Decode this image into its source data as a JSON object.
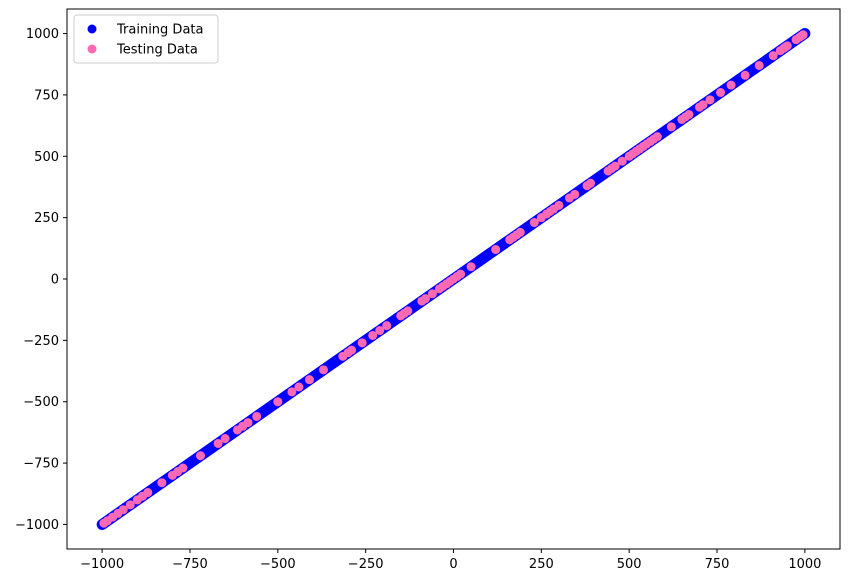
{
  "chart_data": {
    "type": "scatter",
    "title": "",
    "xlabel": "",
    "ylabel": "",
    "xlim": [
      -1100,
      1100
    ],
    "ylim": [
      -1100,
      1100
    ],
    "x_ticks": [
      -1000,
      -750,
      -500,
      -250,
      0,
      250,
      500,
      750,
      1000
    ],
    "y_ticks": [
      -1000,
      -750,
      -500,
      -250,
      0,
      250,
      500,
      750,
      1000
    ],
    "x_tick_labels": [
      "−1000",
      "−750",
      "−500",
      "−250",
      "0",
      "250",
      "500",
      "750",
      "1000"
    ],
    "y_tick_labels": [
      "−1000",
      "−750",
      "−500",
      "−250",
      "0",
      "250",
      "500",
      "750",
      "1000"
    ],
    "grid": false,
    "legend_position": "top-left",
    "series": [
      {
        "name": "Training Data",
        "color": "#0000ff",
        "marker": "circle",
        "note_range": [
          -1000,
          1000
        ],
        "x": [
          -1000,
          -980,
          -960,
          -940,
          -920,
          -900,
          -880,
          -860,
          -840,
          -820,
          -800,
          -780,
          -760,
          -740,
          -720,
          -700,
          -680,
          -660,
          -640,
          -620,
          -600,
          -580,
          -560,
          -540,
          -520,
          -500,
          -480,
          -460,
          -440,
          -420,
          -400,
          -380,
          -360,
          -340,
          -320,
          -300,
          -280,
          -260,
          -240,
          -220,
          -200,
          -180,
          -160,
          -140,
          -120,
          -100,
          -80,
          -60,
          -40,
          -20,
          0,
          20,
          40,
          60,
          80,
          100,
          120,
          140,
          160,
          180,
          200,
          220,
          240,
          260,
          280,
          300,
          320,
          340,
          360,
          380,
          400,
          420,
          440,
          460,
          480,
          500,
          520,
          540,
          560,
          580,
          600,
          620,
          640,
          660,
          680,
          700,
          720,
          740,
          760,
          780,
          800,
          820,
          840,
          860,
          880,
          900,
          920,
          940,
          960,
          980,
          1000
        ],
        "y": [
          -1000,
          -980,
          -960,
          -940,
          -920,
          -900,
          -880,
          -860,
          -840,
          -820,
          -800,
          -780,
          -760,
          -740,
          -720,
          -700,
          -680,
          -660,
          -640,
          -620,
          -600,
          -580,
          -560,
          -540,
          -520,
          -500,
          -480,
          -460,
          -440,
          -420,
          -400,
          -380,
          -360,
          -340,
          -320,
          -300,
          -280,
          -260,
          -240,
          -220,
          -200,
          -180,
          -160,
          -140,
          -120,
          -100,
          -80,
          -60,
          -40,
          -20,
          0,
          20,
          40,
          60,
          80,
          100,
          120,
          140,
          160,
          180,
          200,
          220,
          240,
          260,
          280,
          300,
          320,
          340,
          360,
          380,
          400,
          420,
          440,
          460,
          480,
          500,
          520,
          540,
          560,
          580,
          600,
          620,
          640,
          660,
          680,
          700,
          720,
          740,
          760,
          780,
          800,
          820,
          840,
          860,
          880,
          900,
          920,
          940,
          960,
          980,
          1000
        ]
      },
      {
        "name": "Testing Data",
        "color": "#ff69b4",
        "marker": "circle",
        "x": [
          -995,
          -985,
          -970,
          -955,
          -940,
          -920,
          -900,
          -885,
          -870,
          -830,
          -800,
          -785,
          -770,
          -720,
          -670,
          -650,
          -615,
          -600,
          -585,
          -560,
          -500,
          -460,
          -440,
          -410,
          -370,
          -315,
          -300,
          -290,
          -260,
          -230,
          -210,
          -190,
          -150,
          -140,
          -130,
          -90,
          -80,
          -60,
          -40,
          -30,
          -20,
          -10,
          0,
          10,
          20,
          50,
          120,
          160,
          170,
          180,
          190,
          230,
          250,
          265,
          275,
          285,
          300,
          330,
          345,
          380,
          390,
          440,
          450,
          460,
          480,
          500,
          510,
          520,
          530,
          540,
          550,
          560,
          570,
          580,
          620,
          650,
          660,
          670,
          700,
          710,
          730,
          760,
          790,
          830,
          870,
          910,
          930,
          940,
          945,
          950,
          975,
          985,
          990,
          995
        ],
        "y": [
          -995,
          -985,
          -970,
          -955,
          -940,
          -920,
          -900,
          -885,
          -870,
          -830,
          -800,
          -785,
          -770,
          -720,
          -670,
          -650,
          -615,
          -600,
          -585,
          -560,
          -500,
          -460,
          -440,
          -410,
          -370,
          -315,
          -300,
          -290,
          -260,
          -230,
          -210,
          -190,
          -150,
          -140,
          -130,
          -90,
          -80,
          -60,
          -40,
          -30,
          -20,
          -10,
          0,
          10,
          20,
          50,
          120,
          160,
          170,
          180,
          190,
          230,
          250,
          265,
          275,
          285,
          300,
          330,
          345,
          380,
          390,
          440,
          450,
          460,
          480,
          500,
          510,
          520,
          530,
          540,
          550,
          560,
          570,
          580,
          620,
          650,
          660,
          670,
          700,
          710,
          730,
          760,
          790,
          830,
          870,
          910,
          930,
          940,
          945,
          950,
          975,
          985,
          990,
          995
        ]
      }
    ]
  }
}
